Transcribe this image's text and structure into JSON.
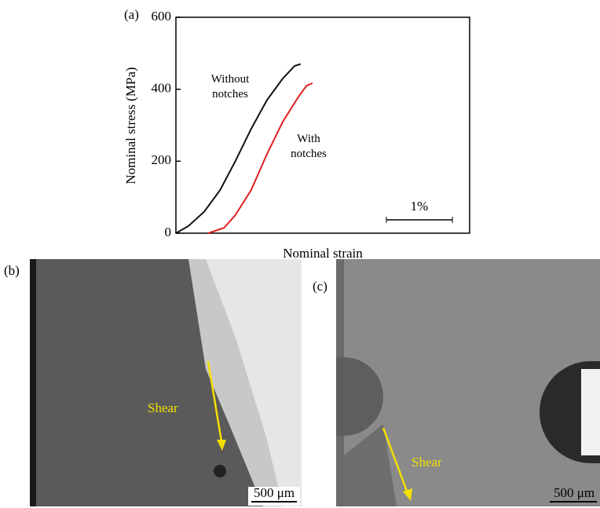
{
  "chart_data": {
    "type": "line",
    "panel_label": "(a)",
    "xlabel": "Nominal strain",
    "ylabel": "Nominal stress (MPa)",
    "xlim": [
      0,
      4.45
    ],
    "ylim": [
      0,
      600
    ],
    "yticks": [
      0,
      200,
      400,
      600
    ],
    "scale_bar": {
      "value": 1,
      "label": "1%"
    },
    "series": [
      {
        "name": "Without notches",
        "color": "#111111",
        "x": [
          0,
          0.19,
          0.43,
          0.67,
          0.9,
          1.14,
          1.38,
          1.62,
          1.8,
          1.89
        ],
        "values": [
          0,
          20,
          60,
          120,
          200,
          290,
          370,
          430,
          465,
          470
        ]
      },
      {
        "name": "With notches",
        "color": "#e02020",
        "x": [
          0.49,
          0.73,
          0.9,
          1.14,
          1.38,
          1.62,
          1.86,
          1.98,
          2.07
        ],
        "values": [
          0,
          15,
          50,
          120,
          220,
          310,
          380,
          410,
          417
        ]
      }
    ]
  },
  "panels": [
    {
      "label": "(b)",
      "annotation": "Shear",
      "scale_bar": "500 μm"
    },
    {
      "label": "(c)",
      "annotation": "Shear",
      "scale_bar": "500 μm"
    }
  ]
}
